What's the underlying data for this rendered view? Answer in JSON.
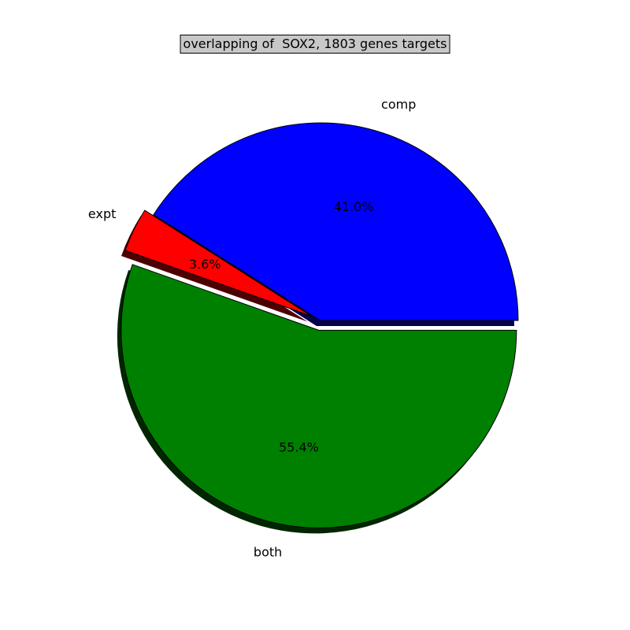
{
  "chart_data": {
    "type": "pie",
    "title": "overlapping of  SOX2, 1803 genes targets",
    "categories": [
      "comp",
      "expt",
      "both"
    ],
    "values": [
      41.0,
      3.6,
      55.4
    ],
    "value_labels": [
      "41.0%",
      "3.6%",
      "55.4%"
    ],
    "colors": [
      "#0000ff",
      "#ff0000",
      "#008000"
    ],
    "exploded": [
      false,
      true,
      true
    ],
    "shadow": true,
    "start_angle_deg": 0,
    "direction": "counterclockwise",
    "legend": false
  }
}
